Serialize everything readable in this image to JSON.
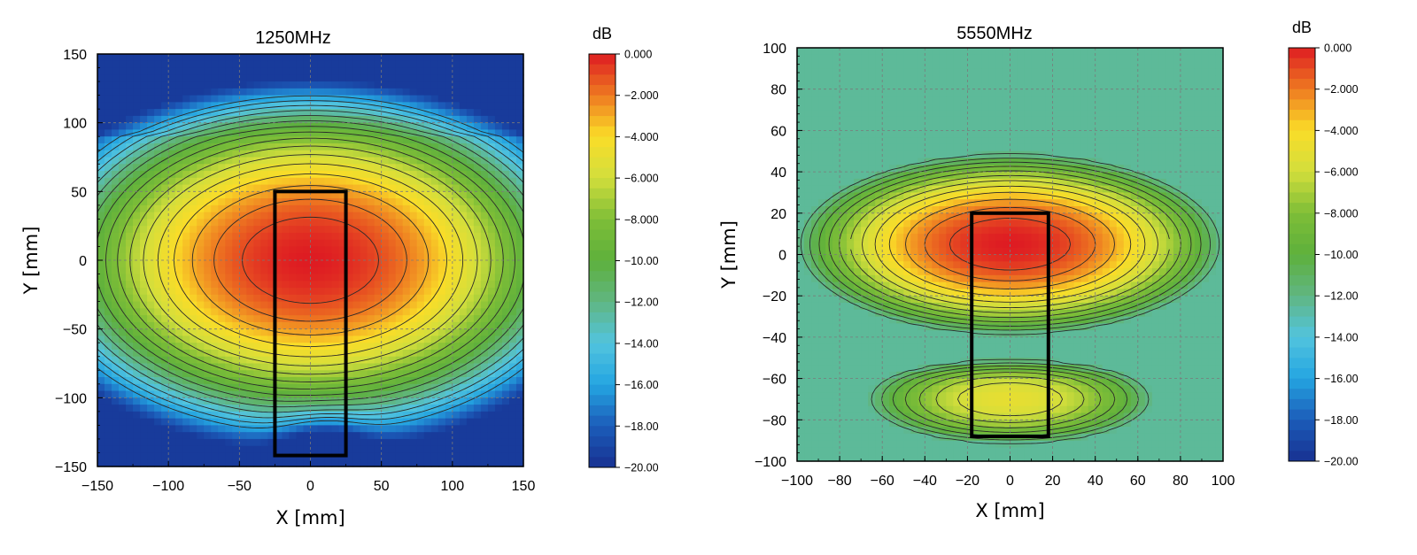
{
  "chart_data": [
    {
      "type": "heatmap",
      "title": "1250MHz",
      "xlabel": "X [mm]",
      "ylabel": "Y [mm]",
      "xlim": [
        -150,
        150
      ],
      "ylim": [
        -150,
        150
      ],
      "xticks": [
        -150,
        -100,
        -50,
        0,
        50,
        100,
        150
      ],
      "xtick_labels": [
        "−150",
        "−100",
        "−50",
        "0",
        "50",
        "100",
        "150"
      ],
      "yticks": [
        150,
        100,
        50,
        0,
        -50,
        -100,
        -150
      ],
      "ytick_labels": [
        "150",
        "100",
        "50",
        "0",
        "−50",
        "−100",
        "−150"
      ],
      "grid": true,
      "value_unit": "dB",
      "value_range": [
        -20,
        0
      ],
      "colorbar_ticks": [
        0,
        -2,
        -4,
        -6,
        -8,
        -10,
        -12,
        -14,
        -16,
        -18,
        -20
      ],
      "colorbar_labels": [
        "0.000",
        "−2.000",
        "−4.000",
        "−6.000",
        "−8.000",
        "−10.00",
        "−12.00",
        "−14.00",
        "−16.00",
        "−18.00",
        "−20.00"
      ],
      "peak": {
        "x": 0,
        "y": 0,
        "value": 0
      },
      "secondary_min": {
        "x": 10,
        "y": -140,
        "value": -16
      },
      "overlay_rect": {
        "x": [
          -25,
          25
        ],
        "y": [
          -142,
          50
        ]
      }
    },
    {
      "type": "heatmap",
      "title": "5550MHz",
      "xlabel": "X [mm]",
      "ylabel": "Y [mm]",
      "xlim": [
        -100,
        100
      ],
      "ylim": [
        -100,
        100
      ],
      "xticks": [
        -100,
        -80,
        -60,
        -40,
        -20,
        0,
        20,
        40,
        60,
        80,
        100
      ],
      "xtick_labels": [
        "−100",
        "−80",
        "−60",
        "−40",
        "−20",
        "0",
        "20",
        "40",
        "60",
        "80",
        "100"
      ],
      "yticks": [
        100,
        80,
        60,
        40,
        20,
        0,
        -20,
        -40,
        -60,
        -80,
        -100
      ],
      "ytick_labels": [
        "100",
        "80",
        "60",
        "40",
        "20",
        "0",
        "−20",
        "−40",
        "−60",
        "−80",
        "−100"
      ],
      "grid": true,
      "value_unit": "dB",
      "value_range": [
        -20,
        0
      ],
      "colorbar_ticks": [
        0,
        -2,
        -4,
        -6,
        -8,
        -10,
        -12,
        -14,
        -16,
        -18,
        -20
      ],
      "colorbar_labels": [
        "0.000",
        "−2.000",
        "−4.000",
        "−6.000",
        "−8.000",
        "−10.00",
        "−12.00",
        "−14.00",
        "−16.00",
        "−18.00",
        "−20.00"
      ],
      "peak": {
        "x": 0,
        "y": 5,
        "value": 0
      },
      "secondary_peak": {
        "x": 0,
        "y": -70,
        "value": -5
      },
      "overlay_rect": {
        "x": [
          -18,
          18
        ],
        "y": [
          -88,
          20
        ]
      }
    }
  ]
}
